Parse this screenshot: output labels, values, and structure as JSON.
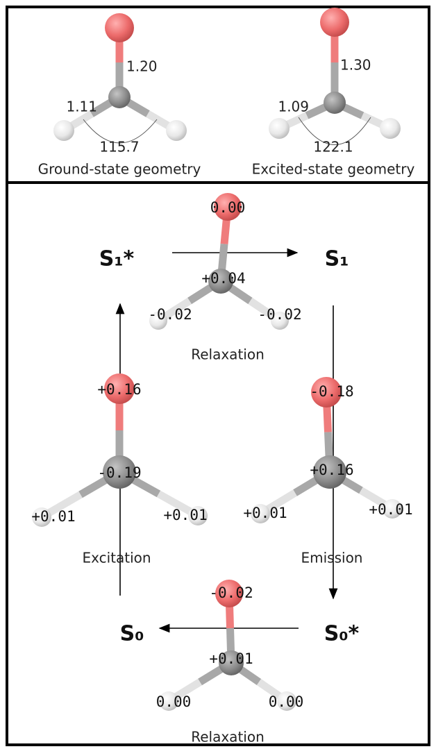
{
  "top_panel": {
    "molecules": [
      {
        "co_bond": "1.20",
        "ch_bond": "1.11",
        "angle": "115.7",
        "caption": "Ground-state geometry"
      },
      {
        "co_bond": "1.30",
        "ch_bond": "1.09",
        "angle": "122.1",
        "caption": "Excited-state geometry"
      }
    ]
  },
  "bottom_panel": {
    "states": {
      "s1_star": "S₁*",
      "s1": "S₁",
      "s0": "S₀",
      "s0_star": "S₀*"
    },
    "molecules": [
      {
        "o": "0.00",
        "c": "+0.04",
        "h_left": "-0.02",
        "h_right": "-0.02",
        "label": "Relaxation"
      },
      {
        "o": "+0.16",
        "c": "-0.19",
        "h_left": "+0.01",
        "h_right": "+0.01",
        "label": "Excitation"
      },
      {
        "o": "-0.18",
        "c": "+0.16",
        "h_left": "+0.01",
        "h_right": "+0.01",
        "label": "Emission"
      },
      {
        "o": "-0.02",
        "c": "+0.01",
        "h_left": "0.00",
        "h_right": "0.00",
        "label": "Relaxation"
      }
    ]
  }
}
